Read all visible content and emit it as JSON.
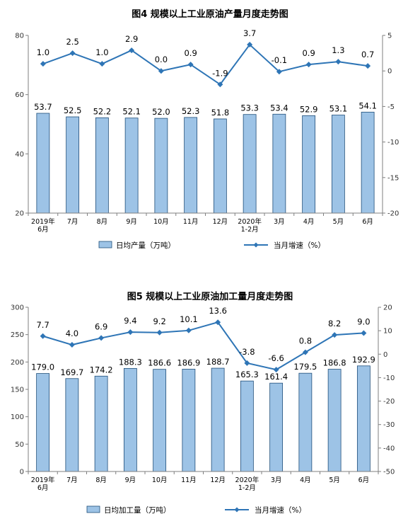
{
  "chart_data": [
    {
      "type": "bar",
      "title": "图4  规模以上工业原油产量月度走势图",
      "categories": [
        "2019年|6月",
        "7月",
        "8月",
        "9月",
        "10月",
        "11月",
        "12月",
        "2020年|1-2月",
        "3月",
        "4月",
        "5月",
        "6月"
      ],
      "series": [
        {
          "name": "日均产量（万吨）",
          "type": "bar",
          "axis": "left",
          "values": [
            53.7,
            52.5,
            52.2,
            52.1,
            52.0,
            52.3,
            51.8,
            53.3,
            53.4,
            52.9,
            53.1,
            54.1
          ],
          "color": "#9dc3e6",
          "edge": "#1f4e79"
        },
        {
          "name": "当月增速（%）",
          "type": "line",
          "axis": "right",
          "values": [
            1.0,
            2.5,
            1.0,
            2.9,
            0.0,
            0.9,
            -1.9,
            3.7,
            -0.1,
            0.9,
            1.3,
            0.7
          ],
          "labels": [
            "1.0",
            "2.5",
            "1.0",
            "2.9",
            "0.0",
            "0.9",
            "-1.9",
            "3.7",
            "-0.1",
            "0.9",
            "1.3",
            "0.7"
          ],
          "color": "#2e75b6"
        }
      ],
      "bar_labels": [
        "53.7",
        "52.5",
        "52.2",
        "52.1",
        "52.0",
        "52.3",
        "51.8",
        "53.3",
        "53.4",
        "52.9",
        "53.1",
        "54.1"
      ],
      "ylim_left": [
        20,
        80
      ],
      "yticks_left": [
        20,
        40,
        60,
        80
      ],
      "ylim_right": [
        -20,
        5
      ],
      "yticks_right": [
        5,
        0,
        -5,
        -10,
        -15,
        -20
      ],
      "legend_placement": "bottom",
      "grid": false
    },
    {
      "type": "bar",
      "title": "图5  规模以上工业原油加工量月度走势图",
      "categories": [
        "2019年|6月",
        "7月",
        "8月",
        "9月",
        "10月",
        "11月",
        "12月",
        "2020年|1-2月",
        "3月",
        "4月",
        "5月",
        "6月"
      ],
      "series": [
        {
          "name": "日均加工量（万吨）",
          "type": "bar",
          "axis": "left",
          "values": [
            179.0,
            169.7,
            174.2,
            188.3,
            186.6,
            186.9,
            188.7,
            165.3,
            161.4,
            179.5,
            186.8,
            192.9
          ],
          "color": "#9dc3e6",
          "edge": "#1f4e79"
        },
        {
          "name": "当月增速（%）",
          "type": "line",
          "axis": "right",
          "values": [
            7.7,
            4.0,
            6.9,
            9.4,
            9.2,
            10.1,
            13.6,
            -3.8,
            -6.6,
            0.8,
            8.2,
            9.0
          ],
          "labels": [
            "7.7",
            "4.0",
            "6.9",
            "9.4",
            "9.2",
            "10.1",
            "13.6",
            "-3.8",
            "-6.6",
            "0.8",
            "8.2",
            "9.0"
          ],
          "color": "#2e75b6"
        }
      ],
      "bar_labels": [
        "179.0",
        "169.7",
        "174.2",
        "188.3",
        "186.6",
        "186.9",
        "188.7",
        "165.3",
        "161.4",
        "179.5",
        "186.8",
        "192.9"
      ],
      "ylim_left": [
        0,
        300
      ],
      "yticks_left": [
        0,
        50,
        100,
        150,
        200,
        250,
        300
      ],
      "ylim_right": [
        -50,
        20
      ],
      "yticks_right": [
        20,
        10,
        0,
        -10,
        -20,
        -30,
        -40,
        -50
      ],
      "legend_placement": "bottom",
      "grid": false
    }
  ]
}
